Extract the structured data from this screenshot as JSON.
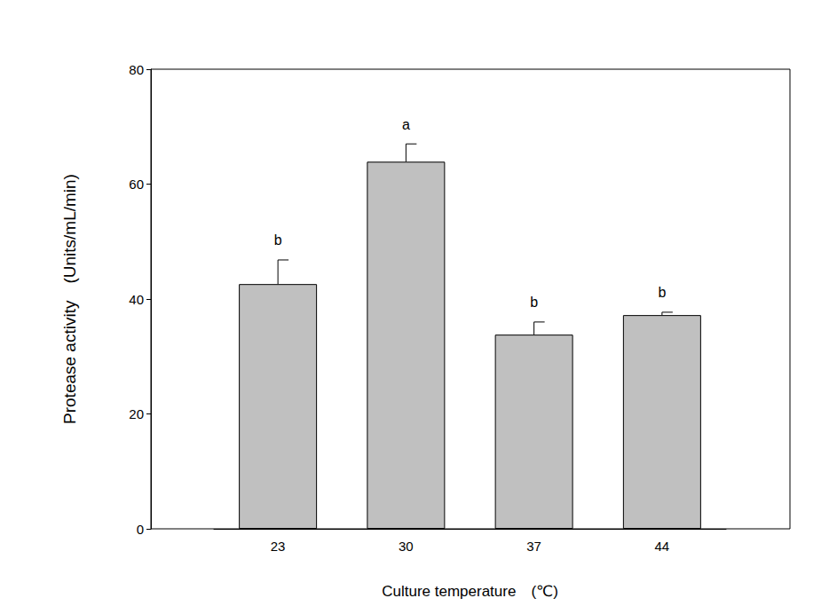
{
  "chart_data": {
    "type": "bar",
    "x_label": "Culture temperature　(℃)",
    "y_label": "Protease activity　(Units/mL/min)",
    "categories": [
      "23",
      "30",
      "37",
      "44"
    ],
    "values": [
      42.6,
      63.9,
      33.8,
      37.2
    ],
    "errors": [
      4.2,
      3.1,
      2.2,
      0.5
    ],
    "annotations": [
      "b",
      "a",
      "b",
      "b"
    ],
    "color": "#c0c0c0",
    "ylim": [
      0,
      80
    ],
    "yticks": [
      0,
      20,
      40,
      60,
      80
    ],
    "grid": false
  }
}
